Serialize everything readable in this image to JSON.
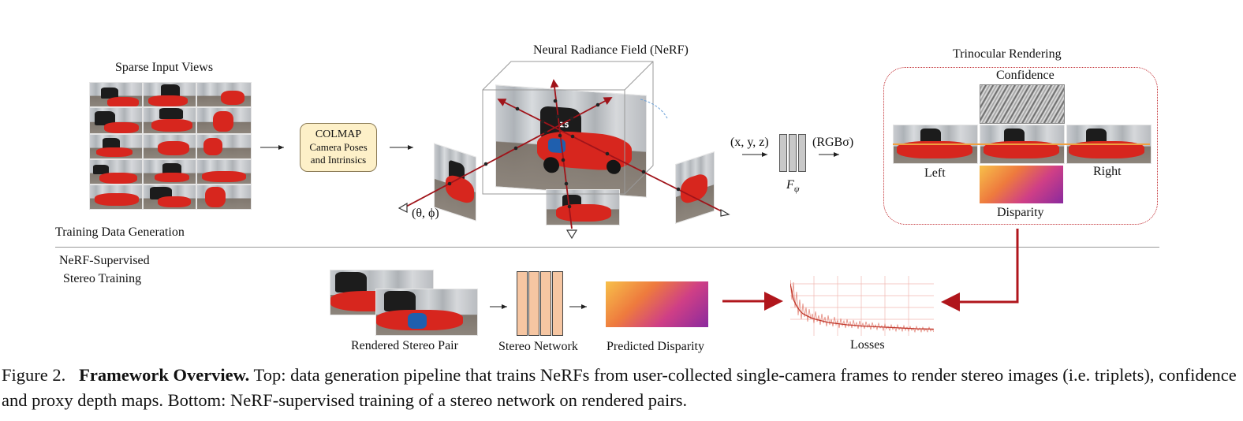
{
  "top": {
    "sparse_title": "Sparse Input Views",
    "colmap": {
      "title": "COLMAP",
      "line1": "Camera Poses",
      "line2": "and Intrinsics"
    },
    "nerf_title": "Neural Radiance Field (NeRF)",
    "angle_label": "(θ, ϕ)",
    "xyz_label": "(x, y, z)",
    "rgb_label": "(RGBσ)",
    "fpsi_label": "F",
    "fpsi_sub": "ψ",
    "trinocular": {
      "title": "Trinocular Rendering",
      "confidence": "Confidence",
      "left": "Left",
      "right": "Right",
      "disparity": "Disparity"
    },
    "section_label": "Training Data Generation"
  },
  "bottom": {
    "section_line1": "NeRF-Supervised",
    "section_line2": "Stereo Training",
    "rendered_pair": "Rendered Stereo Pair",
    "stereo_network": "Stereo Network",
    "predicted_disparity": "Predicted Disparity",
    "losses": "Losses"
  },
  "caption": {
    "prefix": "Figure 2.",
    "bold": "Framework Overview.",
    "text": "Top: data generation pipeline that trains NeRFs from user-collected single-camera frames to render stereo images (i.e. triplets), confidence and proxy depth maps. Bottom: NeRF-supervised training of a stereo network on rendered pairs."
  },
  "colors": {
    "red_arrow": "#b0161c",
    "colmap_fill": "#fdf0c8",
    "stereo_net_fill": "#f6c6a2",
    "mlp_fill": "#c8c8c8",
    "trinocular_border": "#c0282d"
  }
}
